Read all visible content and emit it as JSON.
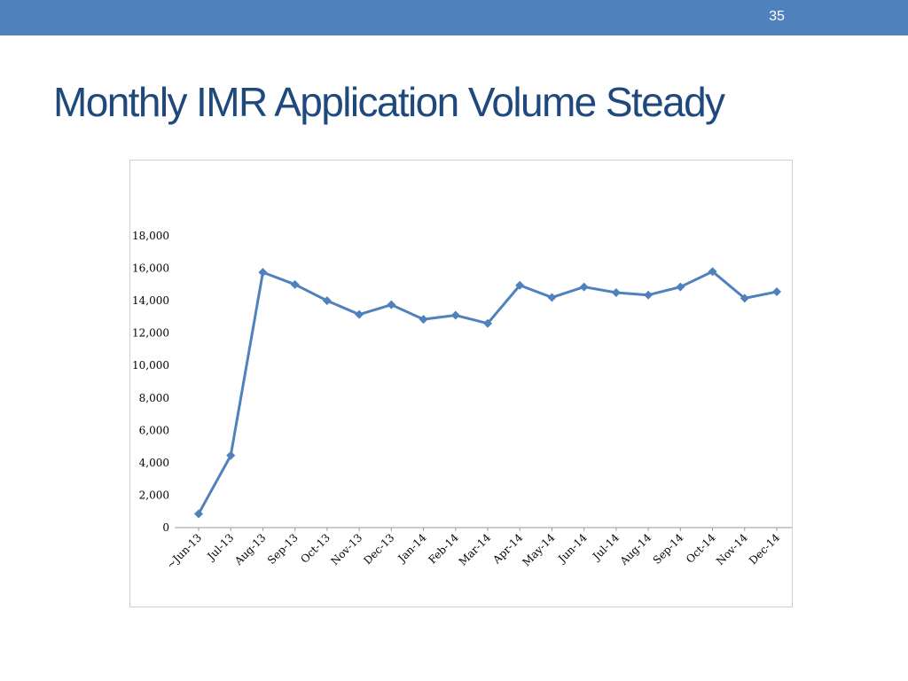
{
  "slide": {
    "number": "35",
    "title": "Monthly IMR Application Volume Steady"
  },
  "colors": {
    "top_bar": "#4f81bd",
    "title": "#1f497d",
    "series_line": "#4f81bd"
  },
  "chart_data": {
    "type": "line",
    "title": "",
    "xlabel": "",
    "ylabel": "",
    "ylim": [
      0,
      18000
    ],
    "yticks": [
      0,
      2000,
      4000,
      6000,
      8000,
      10000,
      12000,
      14000,
      16000,
      18000
    ],
    "ytick_labels": [
      "0",
      "2,000",
      "4,000",
      "6,000",
      "8,000",
      "10,000",
      "12,000",
      "14,000",
      "16,000",
      "18,000"
    ],
    "grid": false,
    "legend": "none",
    "marker": "diamond",
    "categories": [
      "~Jun-13",
      "Jul-13",
      "Aug-13",
      "Sep-13",
      "Oct-13",
      "Nov-13",
      "Dec-13",
      "Jan-14",
      "Feb-14",
      "Mar-14",
      "Apr-14",
      "May-14",
      "Jun-14",
      "Jul-14",
      "Aug-14",
      "Sep-14",
      "Oct-14",
      "Nov-14",
      "Dec-14"
    ],
    "series": [
      {
        "values": [
          850,
          4450,
          15750,
          15000,
          14000,
          13150,
          13750,
          12850,
          13100,
          12600,
          14950,
          14200,
          14850,
          14500,
          14350,
          14850,
          15800,
          14150,
          14550
        ]
      }
    ]
  }
}
